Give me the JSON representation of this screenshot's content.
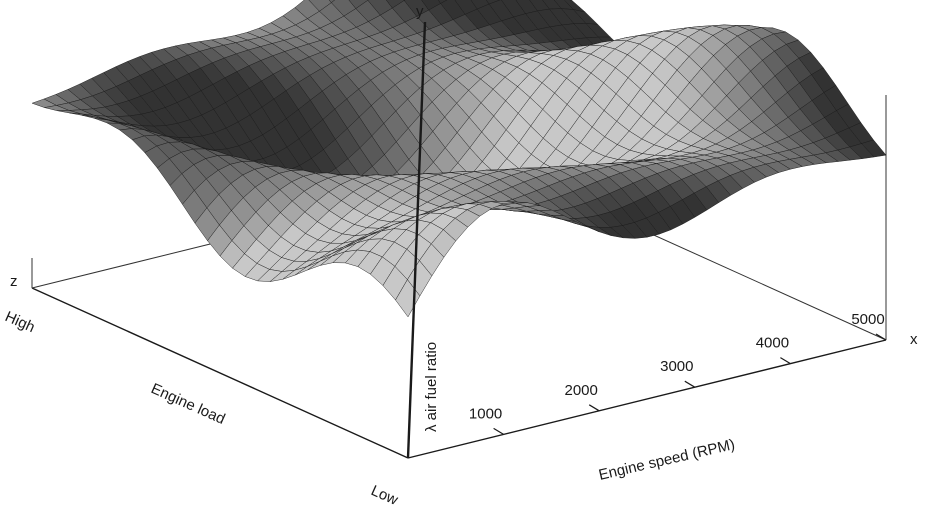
{
  "chart_data": {
    "type": "surface",
    "title": "",
    "x_axis": {
      "letter": "x",
      "label": "Engine speed (RPM)",
      "ticks": [
        1000,
        2000,
        3000,
        4000,
        5000
      ],
      "range": [
        0,
        5000
      ]
    },
    "z_axis": {
      "letter": "z",
      "label": "Engine load",
      "tick_labels": [
        "High",
        "Low"
      ]
    },
    "y_axis": {
      "letter": "y",
      "label": "λ air fuel ratio"
    },
    "grid_size": [
      40,
      30
    ],
    "colors": {
      "mesh": "#1a1a1a",
      "surface_light": "#bdbdbd",
      "surface_dark": "#222222",
      "axis": "#1a1a1a"
    }
  }
}
